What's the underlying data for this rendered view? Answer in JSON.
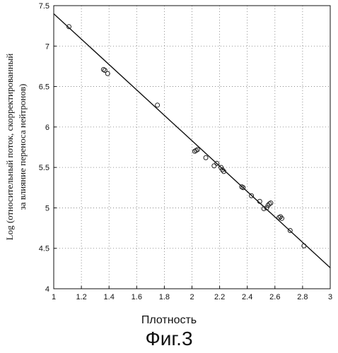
{
  "chart_data": {
    "type": "scatter",
    "xlabel": "Плотность",
    "ylabel_lines": [
      "Log (относительный поток, скорректированный",
      "за влияние переноса нейтронов)"
    ],
    "xlim": [
      1,
      3
    ],
    "ylim": [
      4,
      7.5
    ],
    "xticks": [
      "1",
      "1.2",
      "1.4",
      "1.6",
      "1.8",
      "2",
      "2.2",
      "2.4",
      "2.6",
      "2.8",
      "3"
    ],
    "yticks": [
      "4",
      "4.5",
      "5",
      "5.5",
      "6",
      "6.5",
      "7",
      "7.5"
    ],
    "grid": true,
    "grid_style": "dotted",
    "series": [
      {
        "points": [
          {
            "x": 1.11,
            "y": 7.24
          },
          {
            "x": 1.36,
            "y": 6.71
          },
          {
            "x": 1.37,
            "y": 6.7
          },
          {
            "x": 1.39,
            "y": 6.66
          },
          {
            "x": 1.75,
            "y": 6.27
          },
          {
            "x": 2.02,
            "y": 5.7
          },
          {
            "x": 2.03,
            "y": 5.71
          },
          {
            "x": 2.04,
            "y": 5.72
          },
          {
            "x": 2.1,
            "y": 5.62
          },
          {
            "x": 2.16,
            "y": 5.52
          },
          {
            "x": 2.18,
            "y": 5.55
          },
          {
            "x": 2.21,
            "y": 5.5
          },
          {
            "x": 2.22,
            "y": 5.47
          },
          {
            "x": 2.23,
            "y": 5.45
          },
          {
            "x": 2.36,
            "y": 5.26
          },
          {
            "x": 2.37,
            "y": 5.25
          },
          {
            "x": 2.43,
            "y": 5.15
          },
          {
            "x": 2.49,
            "y": 5.08
          },
          {
            "x": 2.52,
            "y": 4.99
          },
          {
            "x": 2.54,
            "y": 5.0
          },
          {
            "x": 2.55,
            "y": 5.03
          },
          {
            "x": 2.56,
            "y": 5.05
          },
          {
            "x": 2.57,
            "y": 5.06
          },
          {
            "x": 2.63,
            "y": 4.88
          },
          {
            "x": 2.64,
            "y": 4.89
          },
          {
            "x": 2.65,
            "y": 4.87
          },
          {
            "x": 2.71,
            "y": 4.72
          },
          {
            "x": 2.81,
            "y": 4.53
          }
        ]
      }
    ],
    "fit_line": {
      "x": [
        1,
        3
      ],
      "y": [
        7.4,
        4.26
      ]
    }
  },
  "figure_caption": "Фиг.3"
}
